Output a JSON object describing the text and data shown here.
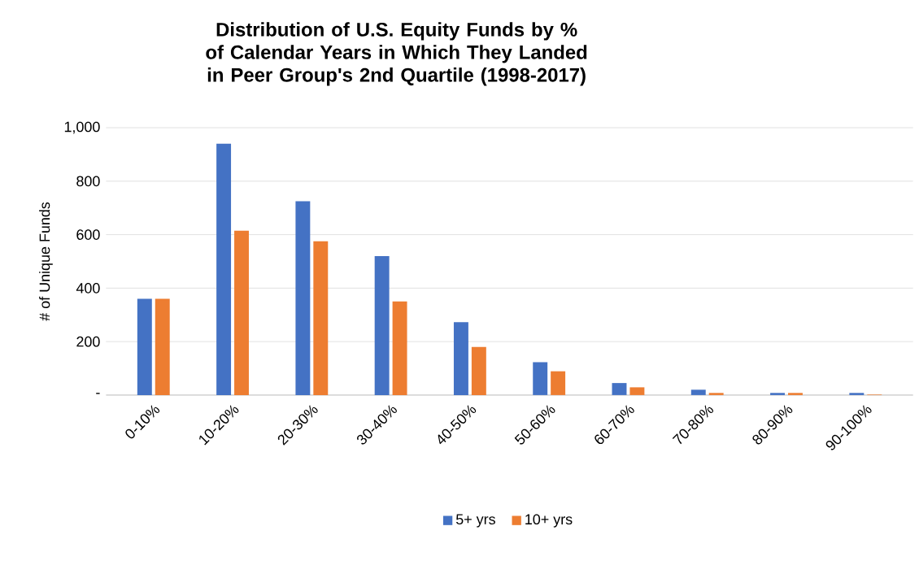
{
  "chart_data": {
    "type": "bar",
    "title": "Distribution of U.S. Equity Funds by % of Calendar Years in Which They Landed in Peer Group's 2nd Quartile (1998-2017)",
    "ylabel": "# of Unique Funds",
    "categories": [
      "0-10%",
      "10-20%",
      "20-30%",
      "30-40%",
      "40-50%",
      "50-60%",
      "60-70%",
      "70-80%",
      "80-90%",
      "90-100%"
    ],
    "series": [
      {
        "name": "5+ yrs",
        "color": "#4472c4",
        "values": [
          360,
          940,
          725,
          520,
          273,
          123,
          45,
          20,
          8,
          8
        ]
      },
      {
        "name": "10+ yrs",
        "color": "#ed7d31",
        "values": [
          360,
          615,
          575,
          350,
          180,
          89,
          29,
          8,
          8,
          2
        ]
      }
    ],
    "ylim": [
      0,
      1000
    ],
    "yticks": [
      {
        "value": 0,
        "label": "-"
      },
      200,
      400,
      600,
      800,
      {
        "value": 1000,
        "label": "1,000"
      }
    ],
    "grid": "y",
    "legend": "bottom"
  }
}
